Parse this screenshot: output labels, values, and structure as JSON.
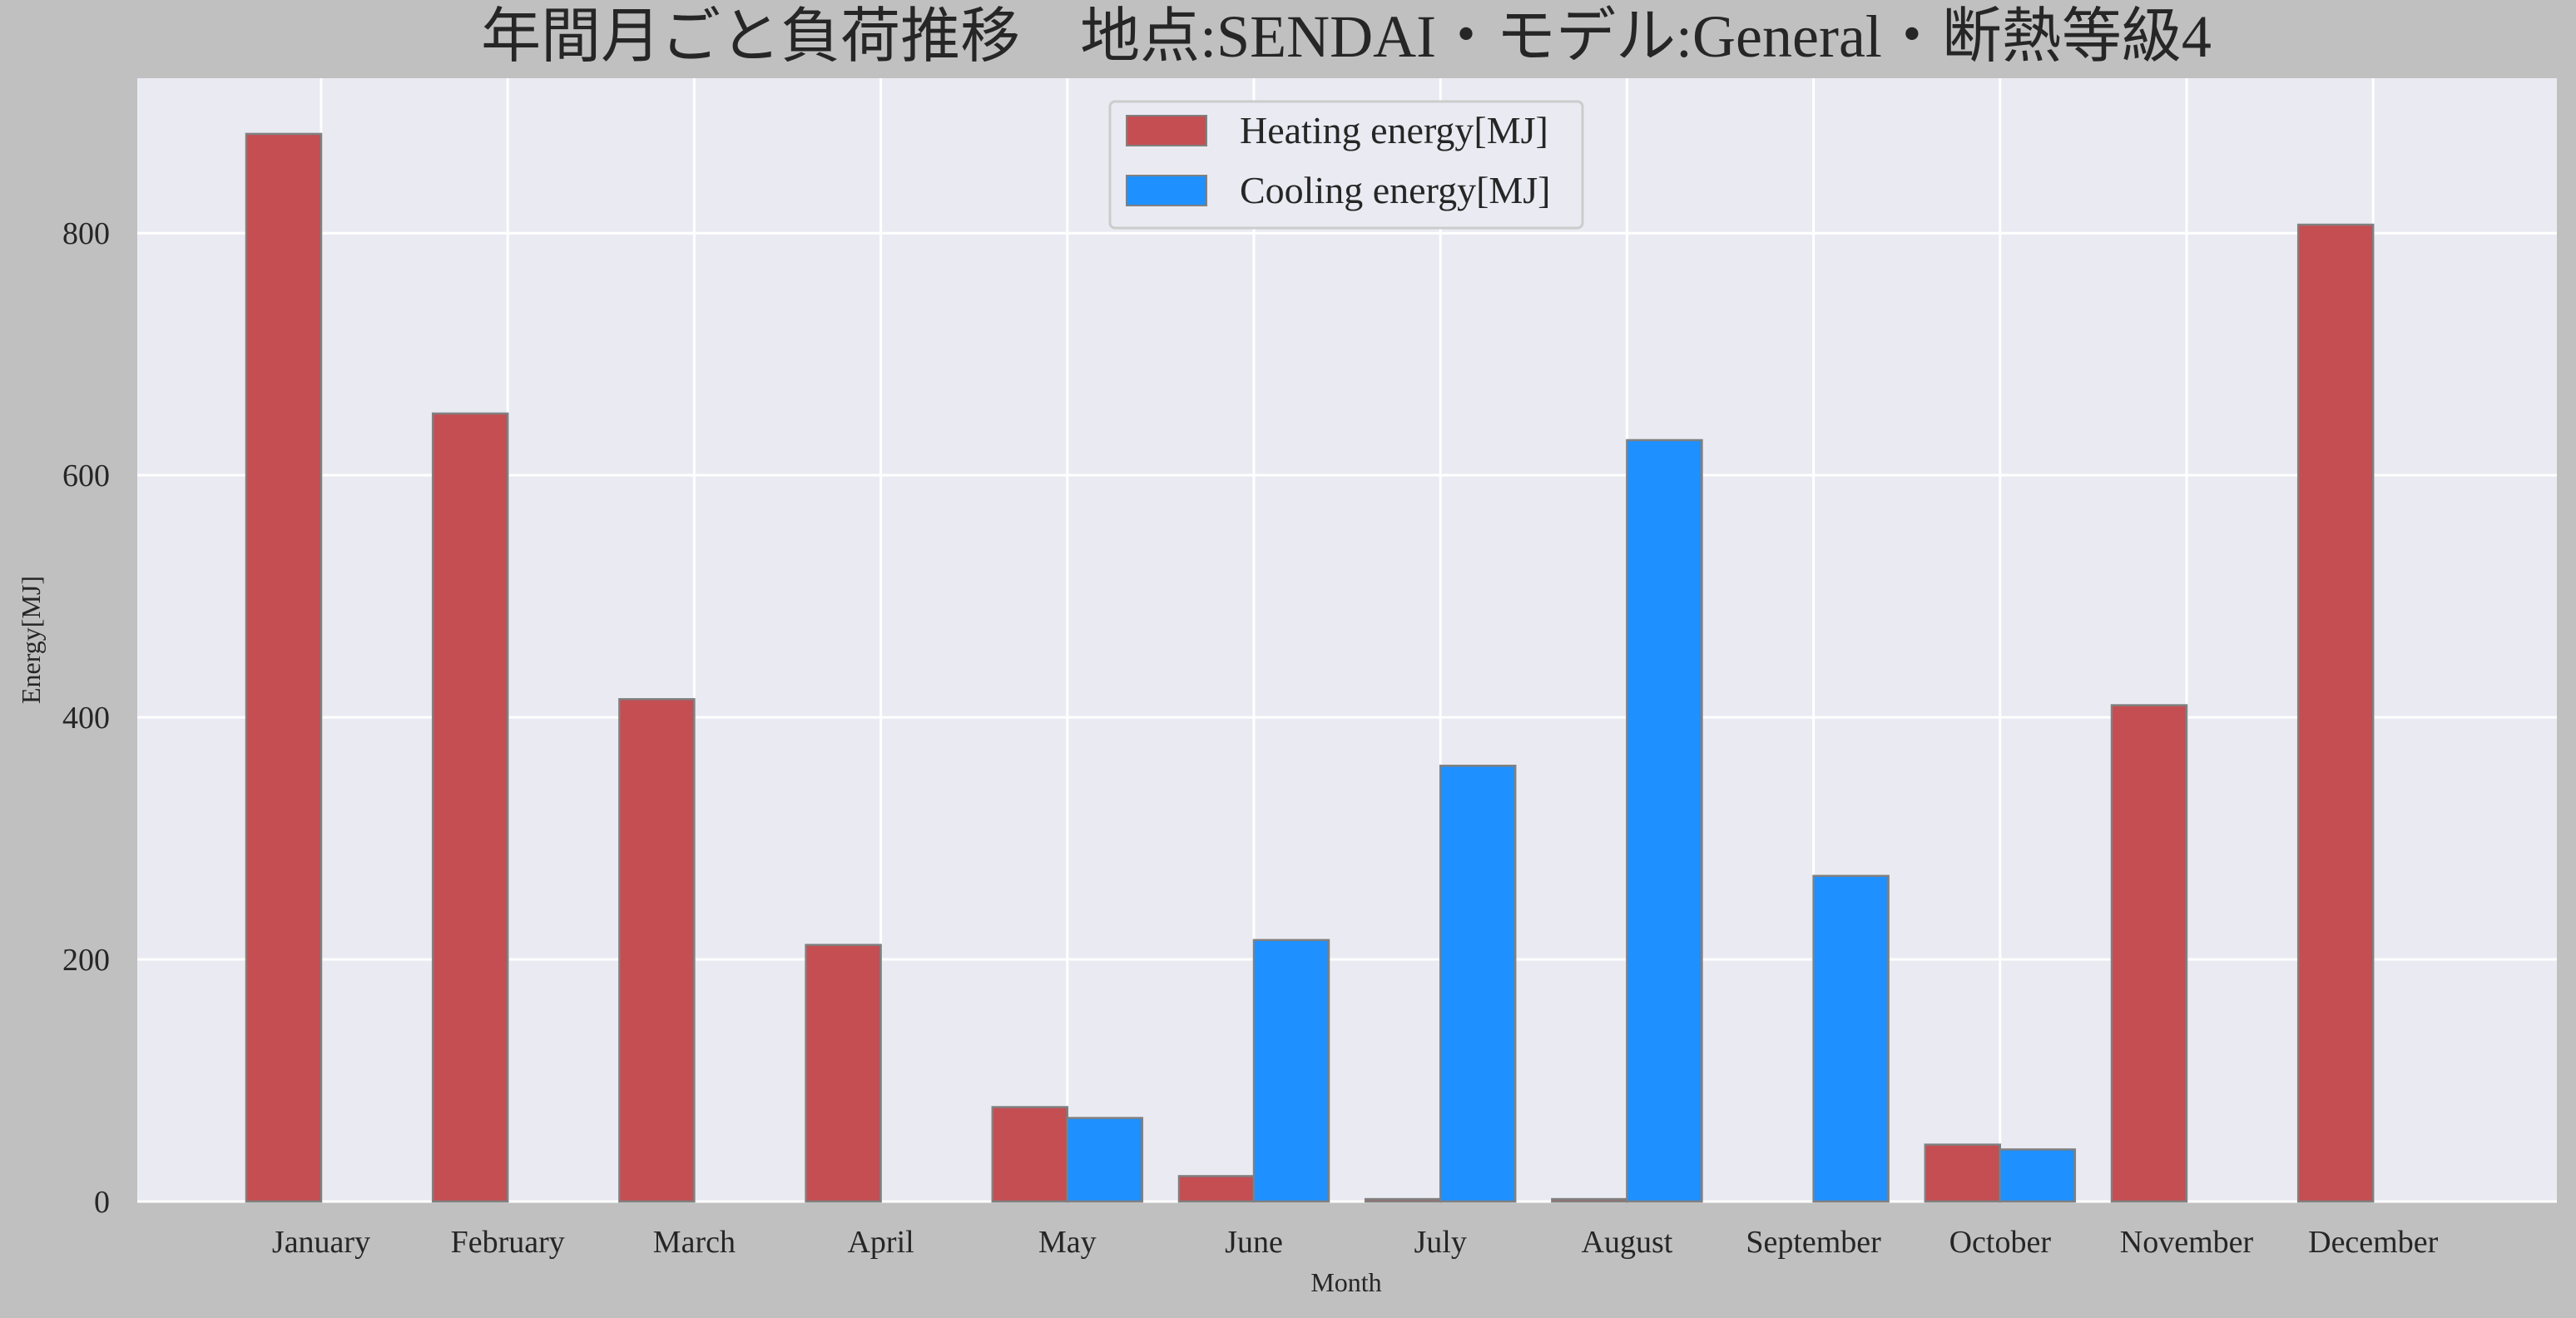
{
  "chart_data": {
    "type": "bar",
    "title": "年間月ごと負荷推移　地点:SENDAI・モデル:General・断熱等級4",
    "xlabel": "Month",
    "ylabel": "Energy[MJ]",
    "categories": [
      "January",
      "February",
      "March",
      "April",
      "May",
      "June",
      "July",
      "August",
      "September",
      "October",
      "November",
      "December"
    ],
    "series": [
      {
        "name": "Heating energy[MJ]",
        "color": "#c44e52",
        "values": [
          882,
          651,
          415,
          212,
          78,
          21,
          2,
          2,
          0,
          47,
          410,
          807
        ]
      },
      {
        "name": "Cooling energy[MJ]",
        "color": "#1e90ff",
        "values": [
          0,
          0,
          0,
          0,
          69,
          216,
          360,
          629,
          269,
          43,
          0,
          0
        ]
      }
    ],
    "y_ticks": [
      0,
      200,
      400,
      600,
      800
    ],
    "ylim": [
      0,
      928
    ],
    "grid": true,
    "legend_position": "upper-center",
    "colors": {
      "figure_background": "#c0c0c0",
      "plot_background": "#eaeaf2",
      "grid": "#ffffff",
      "bar_edge": "#808080",
      "text": "#262626"
    }
  }
}
